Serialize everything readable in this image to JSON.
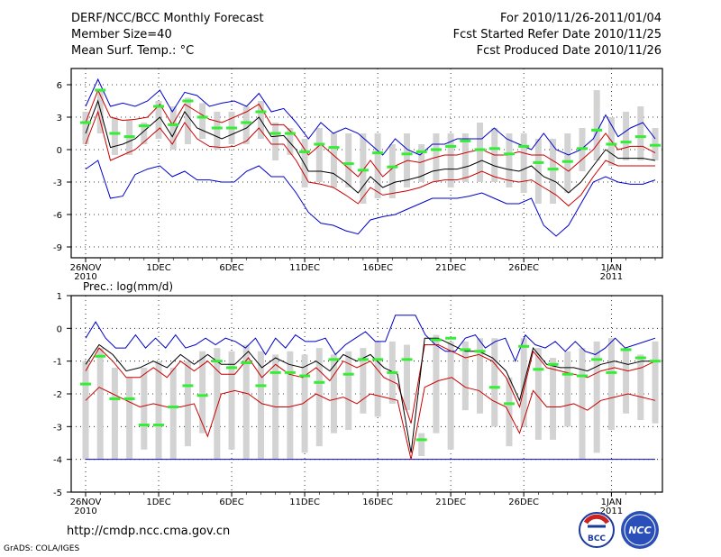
{
  "header": {
    "title": "DERF/NCC/BCC Monthly Forecast",
    "member": "Member Size=40",
    "variable": "Mean Surf. Temp.: °C",
    "for_range": "For 2010/11/26-2011/01/04",
    "started": "Fcst Started Refer Date 2010/11/25",
    "produced": "Fcst Produced Date 2010/11/26"
  },
  "footer": {
    "url": "http://cmdp.ncc.cma.gov.cn",
    "credit": "GrADS: COLA/IGES",
    "logo_bcc": "BCC",
    "logo_ncc": "NCC"
  },
  "colors": {
    "max_min": "#0000cc",
    "spread": "#cc0000",
    "mean": "#000000",
    "box": "#d3d3d3",
    "observed": "#33ee33",
    "grid": "#000000"
  },
  "chart_data": [
    {
      "type": "line",
      "title": "Mean Surf. Temp.: °C",
      "ylabel": "°C",
      "ylim": [
        -10,
        7.5
      ],
      "yticks": [
        6,
        3,
        0,
        -3,
        -6,
        -9
      ],
      "x_ticks": [
        {
          "day": 0,
          "label": "26NOV",
          "sub": "2010"
        },
        {
          "day": 5,
          "label": "1DEC",
          "sub": ""
        },
        {
          "day": 10,
          "label": "6DEC",
          "sub": ""
        },
        {
          "day": 15,
          "label": "11DEC",
          "sub": ""
        },
        {
          "day": 20,
          "label": "16DEC",
          "sub": ""
        },
        {
          "day": 25,
          "label": "21DEC",
          "sub": ""
        },
        {
          "day": 30,
          "label": "26DEC",
          "sub": ""
        },
        {
          "day": 36,
          "label": "1JAN",
          "sub": "2011"
        }
      ],
      "days": 40,
      "series": [
        {
          "name": "max",
          "values": [
            4.0,
            6.5,
            4.0,
            4.3,
            4.0,
            4.5,
            5.5,
            3.5,
            5.3,
            5.0,
            4.0,
            4.3,
            4.5,
            4.0,
            5.2,
            3.5,
            3.8,
            2.5,
            1.0,
            2.5,
            1.5,
            2.0,
            1.5,
            0.5,
            -0.5,
            1.0,
            0.0,
            -0.5,
            0.5,
            0.5,
            1.0,
            1.0,
            1.0,
            2.0,
            1.0,
            0.5,
            0.0,
            1.5,
            0.0,
            -0.5,
            0.0,
            1.0,
            3.2,
            1.2,
            2.0,
            2.5,
            1.0
          ]
        },
        {
          "name": "spread_upper",
          "values": [
            2.5,
            5.5,
            3.0,
            2.7,
            2.8,
            3.0,
            4.2,
            2.3,
            4.2,
            3.5,
            2.8,
            2.5,
            3.0,
            3.5,
            4.2,
            2.3,
            2.3,
            1.2,
            -0.5,
            0.5,
            -0.5,
            -1.5,
            -2.5,
            -1.0,
            -2.5,
            -1.5,
            -1.0,
            -1.2,
            -0.8,
            -0.5,
            -0.5,
            -0.2,
            0.0,
            -0.5,
            -0.5,
            -0.2,
            -0.5,
            -0.5,
            -1.2,
            -2.0,
            -1.0,
            0.0,
            1.5,
            0.0,
            0.3,
            0.3,
            -0.3
          ]
        },
        {
          "name": "mean",
          "values": [
            1.5,
            4.5,
            0.2,
            0.5,
            1.0,
            2.0,
            3.0,
            1.2,
            3.5,
            2.0,
            1.5,
            1.0,
            1.5,
            2.0,
            3.0,
            1.2,
            1.3,
            0.0,
            -2.0,
            -2.0,
            -2.2,
            -3.0,
            -4.0,
            -2.5,
            -3.5,
            -3.0,
            -2.8,
            -2.5,
            -2.0,
            -1.8,
            -1.8,
            -1.5,
            -1.0,
            -1.5,
            -1.8,
            -2.0,
            -1.5,
            -2.5,
            -3.0,
            -4.0,
            -3.0,
            -1.5,
            0.0,
            -0.8,
            -0.8,
            -0.8,
            -1.0
          ]
        },
        {
          "name": "spread_lower",
          "values": [
            0.5,
            3.5,
            -1.0,
            -0.5,
            0.0,
            1.0,
            2.0,
            0.5,
            2.5,
            1.0,
            0.3,
            0.2,
            0.3,
            0.8,
            2.0,
            0.5,
            0.5,
            -1.0,
            -3.0,
            -3.2,
            -3.5,
            -4.2,
            -5.0,
            -3.5,
            -4.2,
            -4.0,
            -3.8,
            -3.5,
            -3.0,
            -2.8,
            -2.8,
            -2.5,
            -2.0,
            -2.5,
            -2.8,
            -3.0,
            -2.8,
            -3.5,
            -4.2,
            -5.2,
            -4.2,
            -2.5,
            -1.0,
            -1.5,
            -1.5,
            -1.5,
            -1.5
          ]
        },
        {
          "name": "min",
          "values": [
            -1.8,
            -1.0,
            -4.5,
            -4.3,
            -2.3,
            -1.8,
            -1.5,
            -2.5,
            -2.0,
            -2.8,
            -2.8,
            -3.0,
            -3.0,
            -2.0,
            -1.5,
            -2.5,
            -2.5,
            -4.0,
            -5.8,
            -6.8,
            -7.0,
            -7.5,
            -7.8,
            -6.5,
            -6.2,
            -6.0,
            -5.5,
            -5.0,
            -4.5,
            -4.5,
            -4.5,
            -4.3,
            -4.0,
            -4.5,
            -5.0,
            -5.0,
            -4.5,
            -7.0,
            -8.0,
            -7.0,
            -5.0,
            -3.0,
            -2.5,
            -3.0,
            -3.2,
            -3.2,
            -2.8
          ]
        },
        {
          "name": "observed",
          "values": [
            2.5,
            5.5,
            1.5,
            1.2,
            2.2,
            4.0,
            2.3,
            4.5,
            3.0,
            2.0,
            2.0,
            2.5,
            3.5,
            1.5,
            1.5,
            -0.2,
            0.5,
            0.2,
            -1.3,
            -1.9,
            -0.3,
            -1.6,
            -0.4,
            -0.2,
            0.0,
            0.3,
            0.8,
            0.0,
            0.1,
            -0.4,
            0.3,
            -1.2,
            -1.8,
            -1.1,
            0.1,
            1.8,
            0.5,
            0.7,
            1.2,
            0.4
          ]
        }
      ],
      "boxes": [
        [
          0.5,
          3.5
        ],
        [
          1.5,
          5.5
        ],
        [
          -0.5,
          3.0
        ],
        [
          -0.5,
          2.8
        ],
        [
          0.5,
          2.5
        ],
        [
          1.0,
          4.5
        ],
        [
          0.0,
          4.0
        ],
        [
          0.5,
          4.8
        ],
        [
          1.0,
          4.3
        ],
        [
          0.0,
          3.5
        ],
        [
          0.5,
          3.5
        ],
        [
          0.5,
          4.0
        ],
        [
          1.0,
          4.5
        ],
        [
          -1.0,
          2.5
        ],
        [
          -0.5,
          2.0
        ],
        [
          -3.5,
          1.0
        ],
        [
          -3.0,
          2.0
        ],
        [
          -3.5,
          1.5
        ],
        [
          -3.5,
          1.5
        ],
        [
          -5.0,
          1.5
        ],
        [
          -4.5,
          1.5
        ],
        [
          -4.5,
          0.5
        ],
        [
          -3.5,
          1.5
        ],
        [
          -3.0,
          0.5
        ],
        [
          -3.0,
          1.5
        ],
        [
          -3.5,
          1.5
        ],
        [
          -3.0,
          1.5
        ],
        [
          -3.0,
          2.5
        ],
        [
          -3.0,
          2.0
        ],
        [
          -3.5,
          1.5
        ],
        [
          -4.0,
          1.5
        ],
        [
          -5.0,
          1.0
        ],
        [
          -5.0,
          1.0
        ],
        [
          -4.0,
          1.5
        ],
        [
          -2.0,
          2.0
        ],
        [
          -1.0,
          5.5
        ],
        [
          -1.5,
          3.0
        ],
        [
          -1.0,
          3.5
        ],
        [
          -1.0,
          4.0
        ],
        [
          -1.0,
          2.0
        ]
      ]
    },
    {
      "type": "line",
      "title": "Prec.: log(mm/d)",
      "ylabel": "log(mm/d)",
      "ylim": [
        -5,
        1
      ],
      "yticks": [
        1,
        0,
        -1,
        -2,
        -3,
        -4,
        -5
      ],
      "x_ticks": [
        {
          "day": 0,
          "label": "26NOV",
          "sub": "2010"
        },
        {
          "day": 5,
          "label": "1DEC",
          "sub": ""
        },
        {
          "day": 10,
          "label": "6DEC",
          "sub": ""
        },
        {
          "day": 15,
          "label": "11DEC",
          "sub": ""
        },
        {
          "day": 20,
          "label": "16DEC",
          "sub": ""
        },
        {
          "day": 25,
          "label": "21DEC",
          "sub": ""
        },
        {
          "day": 30,
          "label": "26DEC",
          "sub": ""
        },
        {
          "day": 36,
          "label": "1JAN",
          "sub": "2011"
        }
      ],
      "days": 40,
      "baseline": -4,
      "series": [
        {
          "name": "max",
          "values": [
            -0.3,
            0.2,
            -0.3,
            -0.6,
            -0.6,
            -0.2,
            -0.6,
            -0.3,
            -0.6,
            -0.2,
            -0.6,
            -0.5,
            -0.3,
            -0.5,
            -0.3,
            -0.4,
            -0.6,
            -0.3,
            -0.8,
            -0.3,
            -0.6,
            -0.2,
            -0.4,
            -0.4,
            -0.3,
            -0.8,
            -0.5,
            -0.3,
            -0.1,
            -0.4,
            -0.4,
            0.4,
            0.4,
            0.4,
            -0.2,
            -0.5,
            -0.7,
            -0.7,
            -0.3,
            -0.2,
            -0.6,
            -0.4,
            -0.3,
            -1.0,
            -0.2,
            -0.5,
            -0.6,
            -0.4,
            -0.7,
            -0.4,
            -0.7,
            -0.8,
            -0.6,
            -0.3,
            -0.6,
            -0.5,
            -0.4,
            -0.3
          ]
        },
        {
          "name": "spread_upper",
          "values": [
            -1.3,
            -0.6,
            -1.0,
            -1.5,
            -1.5,
            -1.2,
            -1.5,
            -1.0,
            -1.3,
            -1.0,
            -1.4,
            -1.4,
            -0.9,
            -1.5,
            -1.1,
            -1.4,
            -1.5,
            -1.2,
            -1.6,
            -1.0,
            -1.2,
            -1.0,
            -1.5,
            -1.7,
            -2.9,
            -0.5,
            -0.5,
            -0.7,
            -0.9,
            -0.8,
            -1.0,
            -1.5,
            -2.4,
            -0.7,
            -1.2,
            -1.3,
            -1.4,
            -1.5,
            -1.3,
            -1.2,
            -1.3,
            -1.2,
            -1.0
          ]
        },
        {
          "name": "mean",
          "values": [
            -1.1,
            -0.5,
            -0.8,
            -1.3,
            -1.2,
            -1.0,
            -1.2,
            -0.8,
            -1.1,
            -0.8,
            -1.1,
            -1.1,
            -0.7,
            -1.2,
            -0.9,
            -1.1,
            -1.2,
            -1.0,
            -1.3,
            -0.8,
            -1.0,
            -0.8,
            -1.2,
            -1.4,
            -3.8,
            -0.3,
            -0.3,
            -0.5,
            -0.7,
            -0.7,
            -0.9,
            -1.3,
            -2.2,
            -0.6,
            -1.1,
            -1.2,
            -1.2,
            -1.3,
            -1.1,
            -1.0,
            -1.1,
            -1.0,
            -1.0
          ]
        },
        {
          "name": "spread_lower",
          "values": [
            -2.2,
            -1.8,
            -2.0,
            -2.2,
            -2.4,
            -2.3,
            -2.4,
            -2.4,
            -2.3,
            -3.3,
            -2.0,
            -1.9,
            -2.0,
            -2.3,
            -2.4,
            -2.4,
            -2.3,
            -2.0,
            -2.2,
            -2.1,
            -2.3,
            -2.0,
            -2.1,
            -2.2,
            -4.0,
            -1.8,
            -1.6,
            -1.5,
            -1.8,
            -1.9,
            -2.2,
            -2.4,
            -3.2,
            -1.9,
            -2.4,
            -2.4,
            -2.3,
            -2.5,
            -2.2,
            -2.1,
            -2.0,
            -2.1,
            -2.2
          ]
        },
        {
          "name": "observed",
          "values": [
            -1.7,
            -0.85,
            -2.15,
            -2.15,
            -2.95,
            -2.95,
            -2.4,
            -1.75,
            -2.05,
            -1.0,
            -1.2,
            -1.05,
            -1.75,
            -1.35,
            -1.35,
            -1.45,
            -1.65,
            -0.95,
            -1.4,
            -0.95,
            -0.95,
            -1.35,
            -0.95,
            -3.4,
            -0.35,
            -0.3,
            -0.65,
            -0.7,
            -1.8,
            -2.3,
            -0.55,
            -1.25,
            -1.1,
            -1.4,
            -1.45,
            -0.95,
            -1.35,
            -0.65,
            -0.9,
            -1.0
          ]
        }
      ],
      "boxes": [
        [
          -4.0,
          -1.0
        ],
        [
          -4.0,
          -0.6
        ],
        [
          -4.0,
          -1.2
        ],
        [
          -4.0,
          -1.5
        ],
        [
          -3.7,
          -1.2
        ],
        [
          -4.0,
          -1.0
        ],
        [
          -4.0,
          -1.2
        ],
        [
          -3.6,
          -1.0
        ],
        [
          -3.2,
          -0.7
        ],
        [
          -4.0,
          -0.6
        ],
        [
          -3.7,
          -0.7
        ],
        [
          -4.0,
          -0.5
        ],
        [
          -4.0,
          -0.7
        ],
        [
          -4.0,
          -0.8
        ],
        [
          -4.0,
          -0.7
        ],
        [
          -3.8,
          -0.8
        ],
        [
          -3.6,
          -0.6
        ],
        [
          -3.2,
          -0.8
        ],
        [
          -3.1,
          -0.7
        ],
        [
          -2.6,
          -0.6
        ],
        [
          -2.7,
          -0.4
        ],
        [
          -2.3,
          -0.4
        ],
        [
          -2.5,
          -0.5
        ],
        [
          -3.9,
          -3.2
        ],
        [
          -3.2,
          -0.2
        ],
        [
          -3.7,
          -0.4
        ],
        [
          -2.5,
          -0.4
        ],
        [
          -2.6,
          -0.3
        ],
        [
          -3.0,
          -0.3
        ],
        [
          -3.6,
          -1.5
        ],
        [
          -3.0,
          -0.3
        ],
        [
          -3.4,
          -0.6
        ],
        [
          -3.4,
          -0.9
        ],
        [
          -3.0,
          -0.7
        ],
        [
          -4.0,
          -0.6
        ],
        [
          -3.8,
          -0.4
        ],
        [
          -3.1,
          -0.3
        ],
        [
          -2.6,
          -0.6
        ],
        [
          -2.8,
          -0.8
        ],
        [
          -2.9,
          -0.4
        ]
      ]
    }
  ]
}
